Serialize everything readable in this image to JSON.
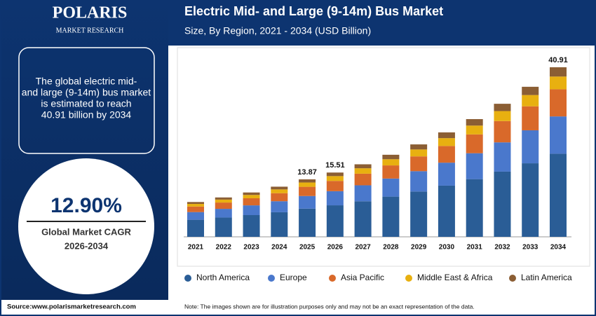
{
  "brand": {
    "name": "POLARIS",
    "sub": "MARKET RESEARCH"
  },
  "summary": [
    "The global electric mid-",
    "and large (9-14m) bus market",
    "is estimated to reach",
    "40.91 billion by 2034"
  ],
  "cagr": {
    "value": "12.90%",
    "label": "Global Market CAGR",
    "period": "2026-2034"
  },
  "source": "Source:www.polarismarketresearch.com",
  "note": "Note: The images shown are for illustration purposes only and may not be an exact representation of the data.",
  "chart_data": {
    "type": "stacked_bar",
    "title": "Electric Mid- and Large (9-14m) Bus Market",
    "subtitle": "Size, By Region, 2021 - 2034 (USD Billion)",
    "categories": [
      "2021",
      "2022",
      "2023",
      "2024",
      "2025",
      "2026",
      "2027",
      "2028",
      "2029",
      "2030",
      "2031",
      "2032",
      "2033",
      "2034"
    ],
    "series": [
      {
        "name": "North America",
        "color": "#2a5d96",
        "values": [
          4.12,
          4.66,
          5.24,
          5.93,
          6.8,
          7.6,
          8.58,
          9.7,
          10.93,
          12.35,
          13.92,
          15.73,
          17.74,
          20.05
        ]
      },
      {
        "name": "Europe",
        "color": "#4a78cc",
        "values": [
          1.85,
          2.09,
          2.35,
          2.66,
          3.05,
          3.41,
          3.85,
          4.36,
          4.91,
          5.54,
          6.25,
          7.06,
          7.96,
          9.0
        ]
      },
      {
        "name": "Asia Pacific",
        "color": "#d9692a",
        "values": [
          1.34,
          1.52,
          1.71,
          1.94,
          2.22,
          2.48,
          2.8,
          3.17,
          3.57,
          4.03,
          4.54,
          5.14,
          5.79,
          6.55
        ]
      },
      {
        "name": "Middle East & Africa",
        "color": "#e8b010",
        "values": [
          0.63,
          0.71,
          0.8,
          0.91,
          1.04,
          1.16,
          1.31,
          1.49,
          1.67,
          1.89,
          2.13,
          2.41,
          2.72,
          3.07
        ]
      },
      {
        "name": "Latin America",
        "color": "#8b5e34",
        "values": [
          0.46,
          0.52,
          0.6,
          0.66,
          0.76,
          0.86,
          0.96,
          1.08,
          1.22,
          1.39,
          1.56,
          1.76,
          1.99,
          2.24
        ]
      }
    ],
    "totals": [
      null,
      null,
      null,
      null,
      13.87,
      15.51,
      null,
      null,
      null,
      null,
      null,
      null,
      null,
      40.91
    ]
  }
}
